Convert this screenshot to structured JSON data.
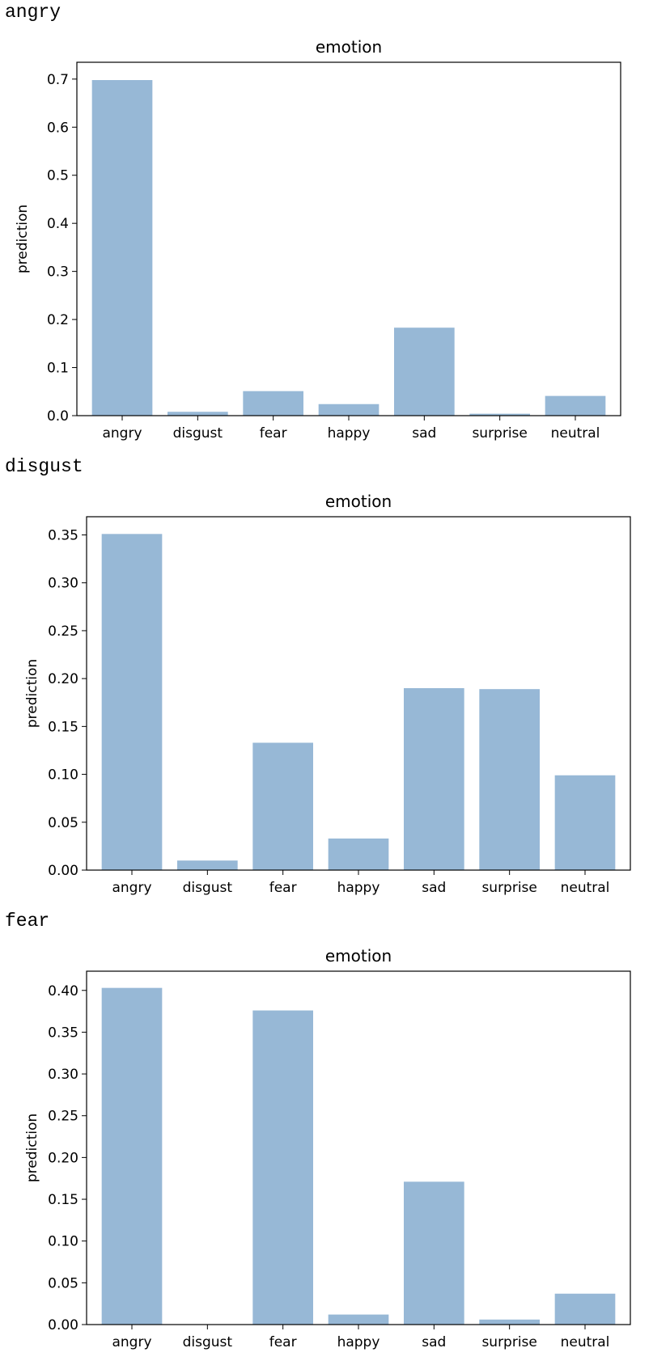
{
  "panels": [
    {
      "label": "angry",
      "chart_data": {
        "type": "bar",
        "title": "emotion",
        "xlabel": "",
        "ylabel": "prediction",
        "categories": [
          "angry",
          "disgust",
          "fear",
          "happy",
          "sad",
          "surprise",
          "neutral"
        ],
        "values": [
          0.698,
          0.008,
          0.051,
          0.024,
          0.183,
          0.004,
          0.041
        ],
        "ylim": [
          0,
          0.735
        ],
        "yticks": [
          0.0,
          0.1,
          0.2,
          0.3,
          0.4,
          0.5,
          0.6,
          0.7
        ],
        "ytick_labels": [
          "0.0",
          "0.1",
          "0.2",
          "0.3",
          "0.4",
          "0.5",
          "0.6",
          "0.7"
        ],
        "bar_color": "#97b8d6",
        "grid": false,
        "legend": "none"
      }
    },
    {
      "label": "disgust",
      "chart_data": {
        "type": "bar",
        "title": "emotion",
        "xlabel": "",
        "ylabel": "prediction",
        "categories": [
          "angry",
          "disgust",
          "fear",
          "happy",
          "sad",
          "surprise",
          "neutral"
        ],
        "values": [
          0.351,
          0.01,
          0.133,
          0.033,
          0.19,
          0.189,
          0.099
        ],
        "ylim": [
          0,
          0.369
        ],
        "yticks": [
          0.0,
          0.05,
          0.1,
          0.15,
          0.2,
          0.25,
          0.3,
          0.35
        ],
        "ytick_labels": [
          "0.00",
          "0.05",
          "0.10",
          "0.15",
          "0.20",
          "0.25",
          "0.30",
          "0.35"
        ],
        "bar_color": "#97b8d6",
        "grid": false,
        "legend": "none"
      }
    },
    {
      "label": "fear",
      "chart_data": {
        "type": "bar",
        "title": "emotion",
        "xlabel": "",
        "ylabel": "prediction",
        "categories": [
          "angry",
          "disgust",
          "fear",
          "happy",
          "sad",
          "surprise",
          "neutral"
        ],
        "values": [
          0.403,
          0.0,
          0.376,
          0.012,
          0.171,
          0.006,
          0.037
        ],
        "ylim": [
          0,
          0.423
        ],
        "yticks": [
          0.0,
          0.05,
          0.1,
          0.15,
          0.2,
          0.25,
          0.3,
          0.35,
          0.4
        ],
        "ytick_labels": [
          "0.00",
          "0.05",
          "0.10",
          "0.15",
          "0.20",
          "0.25",
          "0.30",
          "0.35",
          "0.40"
        ],
        "bar_color": "#97b8d6",
        "grid": false,
        "legend": "none"
      }
    }
  ]
}
